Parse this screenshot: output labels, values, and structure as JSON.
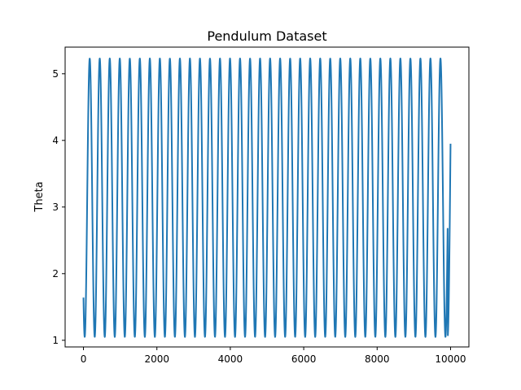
{
  "chart_data": {
    "type": "line",
    "title": "Pendulum Dataset",
    "xlabel": "",
    "ylabel": "Theta",
    "xlim": [
      -500,
      10500
    ],
    "ylim": [
      0.9,
      5.4
    ],
    "xticks": [
      0,
      2000,
      4000,
      6000,
      8000,
      10000
    ],
    "yticks": [
      1,
      2,
      3,
      4,
      5
    ],
    "grid": false,
    "series": [
      {
        "color": "#1f77b4",
        "theta_min": 1.05,
        "theta_max": 5.23,
        "first_peak_x": 170,
        "period": 273,
        "last_trough_x": 9920,
        "end": {
          "x": 10000,
          "y": 3.95
        }
      }
    ]
  }
}
